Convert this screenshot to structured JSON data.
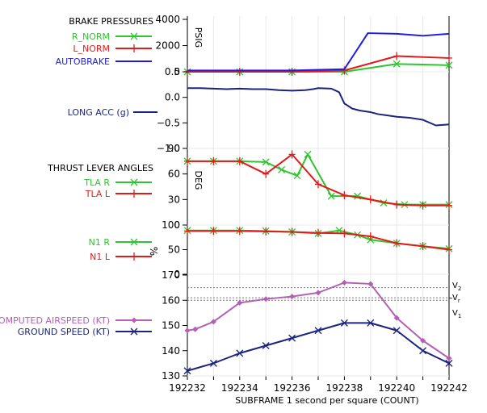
{
  "chart_data": {
    "type": "line",
    "x": [
      192232,
      192233,
      192234,
      192235,
      192236,
      192237,
      192238,
      192239,
      192240,
      192241,
      192242
    ],
    "x_tick_labels": [
      "192232",
      "192234",
      "192236",
      "192238",
      "192240",
      "192242"
    ],
    "x_range": [
      192232,
      192242
    ],
    "xlabel": "SUBFRAME  1 second per square (COUNT)",
    "grid": true,
    "panels": [
      {
        "id": "brake",
        "title": "BRAKE PRESSURES",
        "unit": "PSIG",
        "ylim": [
          0,
          4000
        ],
        "ticks": [
          "4000",
          "2000",
          "0"
        ],
        "series": [
          {
            "name": "R_NORM",
            "color": "#2ec52e",
            "marker": "x",
            "x": [
              192232,
              192234,
              192236,
              192238,
              192240,
              192242
            ],
            "y": [
              0,
              0,
              0,
              0,
              600,
              500
            ]
          },
          {
            "name": "L_NORM",
            "color": "#e41a1a",
            "marker": "+",
            "x": [
              192232,
              192234,
              192236,
              192238,
              192240,
              192242
            ],
            "y": [
              0,
              0,
              0,
              100,
              1200,
              1050
            ]
          },
          {
            "name": "AUTOBRAKE",
            "color": "#1c1ce6",
            "marker": "",
            "x": [
              192232,
              192234,
              192236,
              192238,
              192238.9,
              192240,
              192241,
              192242
            ],
            "y": [
              100,
              100,
              100,
              200,
              2950,
              2900,
              2750,
              2900
            ]
          }
        ]
      },
      {
        "id": "accel",
        "title": "",
        "unit": "",
        "ylim": [
          -1.0,
          0.5
        ],
        "ticks": [
          "0.5",
          "0.0",
          "−0.5",
          "−1.0"
        ],
        "series": [
          {
            "name": "LONG ACC (g)",
            "color": "#1a237e",
            "marker": "",
            "x": [
              192232,
              192232.5,
              192233,
              192233.5,
              192234,
              192234.5,
              192235,
              192235.5,
              192236,
              192236.5,
              192236.8,
              192237,
              192237.5,
              192237.8,
              192238,
              192238.3,
              192238.6,
              192239,
              192239.3,
              192239.6,
              192240,
              192240.5,
              192241,
              192241.5,
              192242
            ],
            "y": [
              0.18,
              0.18,
              0.17,
              0.16,
              0.17,
              0.16,
              0.16,
              0.14,
              0.13,
              0.14,
              0.16,
              0.18,
              0.17,
              0.1,
              -0.12,
              -0.22,
              -0.26,
              -0.29,
              -0.33,
              -0.35,
              -0.38,
              -0.4,
              -0.44,
              -0.55,
              -0.53
            ]
          }
        ]
      },
      {
        "id": "tla",
        "title": "THRUST LEVER ANGLES",
        "unit": "DEG",
        "ylim": [
          0,
          90
        ],
        "ticks": [
          "90",
          "60",
          "30",
          "0"
        ],
        "series": [
          {
            "name": "TLA R",
            "color": "#2ec52e",
            "marker": "x",
            "x": [
              192232,
              192233,
              192234,
              192235,
              192235.6,
              192236.2,
              192236.6,
              192237.5,
              192238.5,
              192239.5,
              192240.3,
              192241,
              192242
            ],
            "y": [
              75,
              75,
              75,
              74,
              65,
              58,
              83,
              34,
              34,
              26,
              24,
              24,
              24
            ]
          },
          {
            "name": "TLA L",
            "color": "#e41a1a",
            "marker": "+",
            "x": [
              192232,
              192233,
              192234,
              192235,
              192236,
              192237,
              192238,
              192239,
              192240,
              192241,
              192242
            ],
            "y": [
              75,
              75,
              75,
              60,
              83,
              48,
              35,
              30,
              24,
              23,
              23
            ]
          }
        ]
      },
      {
        "id": "n1",
        "title": "",
        "unit": "%",
        "ylim": [
          0,
          100
        ],
        "ticks": [
          "100",
          "50",
          "0"
        ],
        "series": [
          {
            "name": "N1 R",
            "color": "#2ec52e",
            "marker": "x",
            "x": [
              192232,
              192233,
              192234,
              192235,
              192236,
              192237,
              192237.8,
              192238.5,
              192239,
              192240,
              192241,
              192242
            ],
            "y": [
              89,
              89,
              89,
              88,
              86,
              83,
              89,
              80,
              70,
              63,
              57,
              52
            ]
          },
          {
            "name": "N1 L",
            "color": "#e41a1a",
            "marker": "+",
            "x": [
              192232,
              192233,
              192234,
              192235,
              192236,
              192237,
              192238,
              192239,
              192240,
              192241,
              192242
            ],
            "y": [
              88,
              88,
              88,
              87,
              86,
              84,
              83,
              77,
              63,
              57,
              50
            ]
          }
        ]
      },
      {
        "id": "speed",
        "title": "",
        "unit": "",
        "ylim": [
          130,
          170
        ],
        "ticks": [
          "170",
          "160",
          "150",
          "140",
          "130"
        ],
        "series": [
          {
            "name": "COMPUTED AIRSPEED (KT)",
            "color": "#b45fb4",
            "marker": "diamond",
            "x": [
              192232,
              192232.3,
              192233,
              192234,
              192235,
              192236,
              192237,
              192238,
              192239,
              192240,
              192241,
              192242
            ],
            "y": [
              148,
              148.5,
              151.5,
              159,
              160.5,
              161.5,
              163,
              167,
              166.5,
              153,
              144,
              137
            ]
          },
          {
            "name": "GROUND SPEED (KT)",
            "color": "#1a237e",
            "marker": "x",
            "x": [
              192232,
              192233,
              192234,
              192235,
              192236,
              192237,
              192238,
              192239,
              192240,
              192241,
              192242
            ],
            "y": [
              132,
              135,
              139,
              142,
              145,
              148,
              151,
              151,
              148,
              140,
              135
            ]
          }
        ],
        "reference_lines": [
          {
            "value": 165,
            "label": "V2",
            "sub": "2"
          },
          {
            "value": 161,
            "label": "Vr",
            "sub": "r"
          },
          {
            "value": 160,
            "label": "V1",
            "sub": "1"
          }
        ]
      }
    ]
  }
}
